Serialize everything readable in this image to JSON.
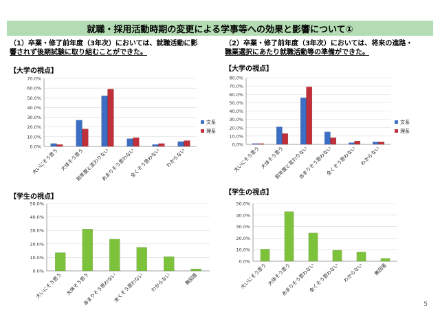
{
  "page": {
    "title": "就職・採用活動時期の変更による学事等への効果と影響について①",
    "page_number": "5",
    "left_caption": [
      "（1）卒業・修了前年度（3年次）においては、就職活動に影",
      "響されず後期試験に取り組むことができた。"
    ],
    "right_caption": [
      "（2）卒業・修了前年度（3年次）においては、将来の進路・",
      "職業選択にあたり就職活動等の準備ができた。"
    ]
  },
  "chart_data": [
    {
      "id": "c1",
      "type": "bar",
      "section_label": "【大学の視点】",
      "categories": [
        "大いにそう思う",
        "大体そう思う",
        "前年度と変わりない",
        "あまりそう思わない",
        "全くそう思わない",
        "わからない"
      ],
      "series": [
        {
          "name": "文系",
          "color": "#3c6fc4",
          "values": [
            3.0,
            27.0,
            52.0,
            8.0,
            2.0,
            5.0
          ]
        },
        {
          "name": "理系",
          "color": "#c0303a",
          "values": [
            2.0,
            18.0,
            59.0,
            9.0,
            3.0,
            6.0
          ]
        }
      ],
      "ylim": [
        0,
        70
      ],
      "yticks": [
        0,
        10,
        20,
        30,
        40,
        50,
        60,
        70
      ],
      "legend": "right"
    },
    {
      "id": "c2",
      "type": "bar",
      "section_label": "【大学の視点】",
      "categories": [
        "大いにそう思う",
        "大体そう思う",
        "前年度と変わりない",
        "あまりそう思わない",
        "全くそう思わない",
        "わからない"
      ],
      "series": [
        {
          "name": "文系",
          "color": "#3c6fc4",
          "values": [
            1.0,
            21.0,
            56.0,
            15.0,
            2.0,
            3.0
          ]
        },
        {
          "name": "理系",
          "color": "#c0303a",
          "values": [
            1.0,
            13.0,
            69.0,
            8.0,
            4.0,
            3.0
          ]
        }
      ],
      "ylim": [
        0,
        80
      ],
      "yticks": [
        0,
        10,
        20,
        30,
        40,
        50,
        60,
        70,
        80
      ],
      "legend": "right"
    },
    {
      "id": "c3",
      "type": "bar",
      "section_label": "【学生の視点】",
      "categories": [
        "大いにそう思う",
        "大体そう思う",
        "あまりそう思わない",
        "全くそう思わない",
        "わからない",
        "無回答"
      ],
      "series": [
        {
          "color": "#7cc23a",
          "values": [
            13.5,
            31.0,
            23.5,
            17.5,
            10.5,
            1.5
          ]
        }
      ],
      "ylim": [
        0,
        50
      ],
      "yticks": [
        0,
        10,
        20,
        30,
        40,
        50
      ]
    },
    {
      "id": "c4",
      "type": "bar",
      "section_label": "【学生の視点】",
      "categories": [
        "大いにそう思う",
        "大体そう思う",
        "あまりそう思わない",
        "全くそう思わない",
        "わからない",
        "無回答"
      ],
      "series": [
        {
          "color": "#7cc23a",
          "values": [
            10.5,
            43.0,
            24.5,
            9.5,
            8.0,
            2.5
          ]
        }
      ],
      "ylim": [
        0,
        50
      ],
      "yticks": [
        0,
        10,
        20,
        30,
        40,
        50
      ]
    }
  ]
}
